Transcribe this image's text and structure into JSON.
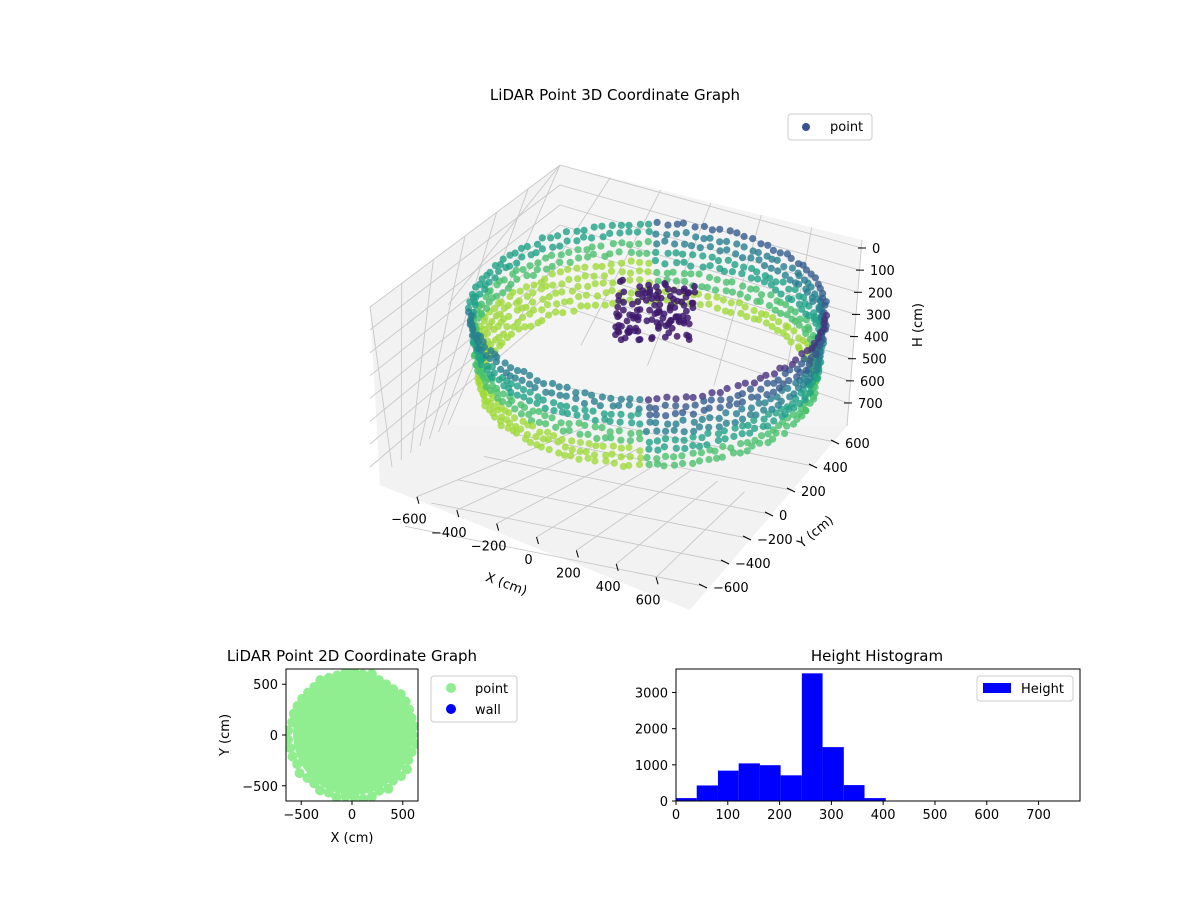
{
  "chart_data": [
    {
      "type": "scatter",
      "projection": "3d",
      "title": "LiDAR Point 3D Coordinate Graph",
      "xlabel": "X (cm)",
      "ylabel": "Y (cm)",
      "zlabel": "H (cm)",
      "xlim": [
        -650,
        650
      ],
      "ylim": [
        -650,
        650
      ],
      "zlim": [
        780,
        0
      ],
      "z_axis_inverted": true,
      "xticks": [
        "−600",
        "−400",
        "−200",
        "0",
        "200",
        "400",
        "600"
      ],
      "yticks": [
        "−600",
        "−400",
        "−200",
        "0",
        "200",
        "400",
        "600"
      ],
      "zticks": [
        "0",
        "100",
        "200",
        "300",
        "400",
        "500",
        "600",
        "700"
      ],
      "colormap": "viridis",
      "legend": {
        "placement": "upper-right",
        "entries": [
          {
            "label": "point",
            "color": "#3b528b"
          }
        ]
      },
      "shape": "toroidal ring of points, radius about 500 cm, heights about 0 to 400 cm, denser dark cluster near center-right",
      "grid": true
    },
    {
      "type": "scatter",
      "title": "LiDAR Point 2D Coordinate Graph",
      "xlabel": "X (cm)",
      "ylabel": "Y (cm)",
      "xlim": [
        -650,
        650
      ],
      "ylim": [
        -650,
        650
      ],
      "xticks": [
        -500,
        0,
        500
      ],
      "yticks": [
        -500,
        0,
        500
      ],
      "legend": {
        "placement": "outside-right",
        "entries": [
          {
            "label": "point",
            "color": "#90ee90"
          },
          {
            "label": "wall",
            "color": "#0000ff"
          }
        ]
      },
      "shape": "filled disk of points centered near (0,0), radius about 620 cm",
      "grid": false
    },
    {
      "type": "bar",
      "title": "Height Histogram",
      "xlabel": "",
      "ylabel": "",
      "xlim": [
        0,
        780
      ],
      "ylim": [
        0,
        3650
      ],
      "xticks": [
        0,
        100,
        200,
        300,
        400,
        500,
        600,
        700
      ],
      "yticks": [
        0,
        1000,
        2000,
        3000
      ],
      "bar_color": "#0000ff",
      "bins": [
        {
          "start": 0,
          "end": 40,
          "count": 80
        },
        {
          "start": 40,
          "end": 81,
          "count": 430
        },
        {
          "start": 81,
          "end": 121,
          "count": 840
        },
        {
          "start": 121,
          "end": 162,
          "count": 1040
        },
        {
          "start": 162,
          "end": 202,
          "count": 990
        },
        {
          "start": 202,
          "end": 243,
          "count": 710
        },
        {
          "start": 243,
          "end": 283,
          "count": 3530
        },
        {
          "start": 283,
          "end": 324,
          "count": 1490
        },
        {
          "start": 324,
          "end": 364,
          "count": 440
        },
        {
          "start": 364,
          "end": 405,
          "count": 80
        },
        {
          "start": 405,
          "end": 445,
          "count": 4
        },
        {
          "start": 445,
          "end": 486,
          "count": 3
        },
        {
          "start": 486,
          "end": 526,
          "count": 3
        },
        {
          "start": 526,
          "end": 567,
          "count": 2
        },
        {
          "start": 567,
          "end": 607,
          "count": 2
        },
        {
          "start": 607,
          "end": 648,
          "count": 2
        },
        {
          "start": 648,
          "end": 688,
          "count": 2
        },
        {
          "start": 688,
          "end": 729,
          "count": 2
        },
        {
          "start": 729,
          "end": 769,
          "count": 2
        }
      ],
      "legend": {
        "placement": "upper-right",
        "entries": [
          {
            "label": "Height",
            "color": "#0000ff"
          }
        ]
      },
      "grid": false
    }
  ]
}
